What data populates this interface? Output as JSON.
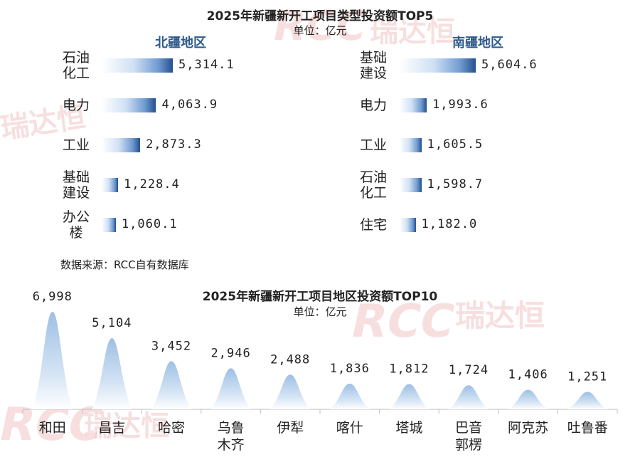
{
  "chart_data": [
    {
      "type": "bar",
      "orientation": "horizontal",
      "title": "2025年新疆新开工项目类型投资额TOP5",
      "unit": "单位：亿元",
      "panels": [
        {
          "name": "北疆地区",
          "categories": [
            "石油\n化工",
            "电力",
            "工业",
            "基础\n建设",
            "办公\n楼"
          ],
          "values": [
            5314.1,
            4063.9,
            2873.3,
            1228.4,
            1060.1
          ],
          "labels": [
            "5,314.1",
            "4,063.9",
            "2,873.3",
            "1,228.4",
            "1,060.1"
          ]
        },
        {
          "name": "南疆地区",
          "categories": [
            "基础\n建设",
            "电力",
            "工业",
            "石油\n化工",
            "住宅"
          ],
          "values": [
            5604.6,
            1993.6,
            1605.5,
            1598.7,
            1182.0
          ],
          "labels": [
            "5,604.6",
            "1,993.6",
            "1,605.5",
            "1,598.7",
            "1,182.0"
          ]
        }
      ]
    },
    {
      "type": "area",
      "title": "2025年新疆新开工项目地区投资额TOP10",
      "unit": "单位：亿元",
      "categories": [
        "和田",
        "昌吉",
        "哈密",
        "乌鲁\n木齐",
        "伊犁",
        "喀什",
        "塔城",
        "巴音\n郭楞",
        "阿克苏",
        "吐鲁番"
      ],
      "values": [
        6998,
        5104,
        3452,
        2946,
        2488,
        1836,
        1812,
        1724,
        1406,
        1251
      ],
      "labels": [
        "6,998",
        "5,104",
        "3,452",
        "2,946",
        "2,488",
        "1,836",
        "1,812",
        "1,724",
        "1,406",
        "1,251"
      ]
    }
  ],
  "source": "数据来源：RCC自有数据库",
  "watermark": {
    "logo": "RCC",
    "text": "瑞达恒"
  },
  "colors": {
    "bar_dark": "#24508e",
    "bar_light": "#cfe0f4",
    "peak_dark": "#9ebfe4",
    "region_title": "#2f5a8c",
    "watermark": "#f2c6c6"
  }
}
